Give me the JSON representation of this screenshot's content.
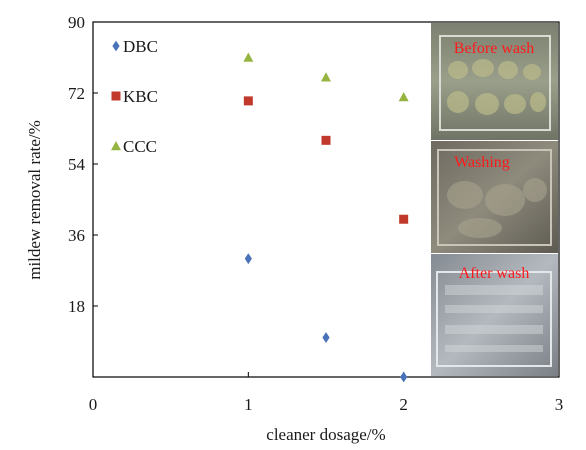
{
  "chart_data": {
    "type": "scatter",
    "xlabel": "cleaner dosage/%",
    "ylabel": "mildew removal rate/%",
    "xlim": [
      0,
      3
    ],
    "ylim": [
      0,
      90
    ],
    "xticks": [
      0,
      1,
      2,
      3
    ],
    "yticks": [
      18,
      36,
      54,
      72,
      90
    ],
    "grid": false,
    "legend_position": "top-left",
    "series": [
      {
        "name": "DBC",
        "marker": "diamond",
        "color": "#4a72b8",
        "x": [
          1,
          1.5,
          2
        ],
        "y": [
          30,
          10,
          0
        ]
      },
      {
        "name": "KBC",
        "marker": "square",
        "color": "#c0392b",
        "x": [
          1,
          1.5,
          2
        ],
        "y": [
          70,
          60,
          40
        ]
      },
      {
        "name": "CCC",
        "marker": "triangle",
        "color": "#96b442",
        "x": [
          1,
          1.5,
          2
        ],
        "y": [
          81,
          76,
          71
        ]
      }
    ]
  },
  "photos": [
    {
      "caption": "Before wash",
      "tone": "#8a8f7e"
    },
    {
      "caption": "Washing",
      "tone": "#7d7a70"
    },
    {
      "caption": "After wash",
      "tone": "#9aa0a6"
    }
  ]
}
